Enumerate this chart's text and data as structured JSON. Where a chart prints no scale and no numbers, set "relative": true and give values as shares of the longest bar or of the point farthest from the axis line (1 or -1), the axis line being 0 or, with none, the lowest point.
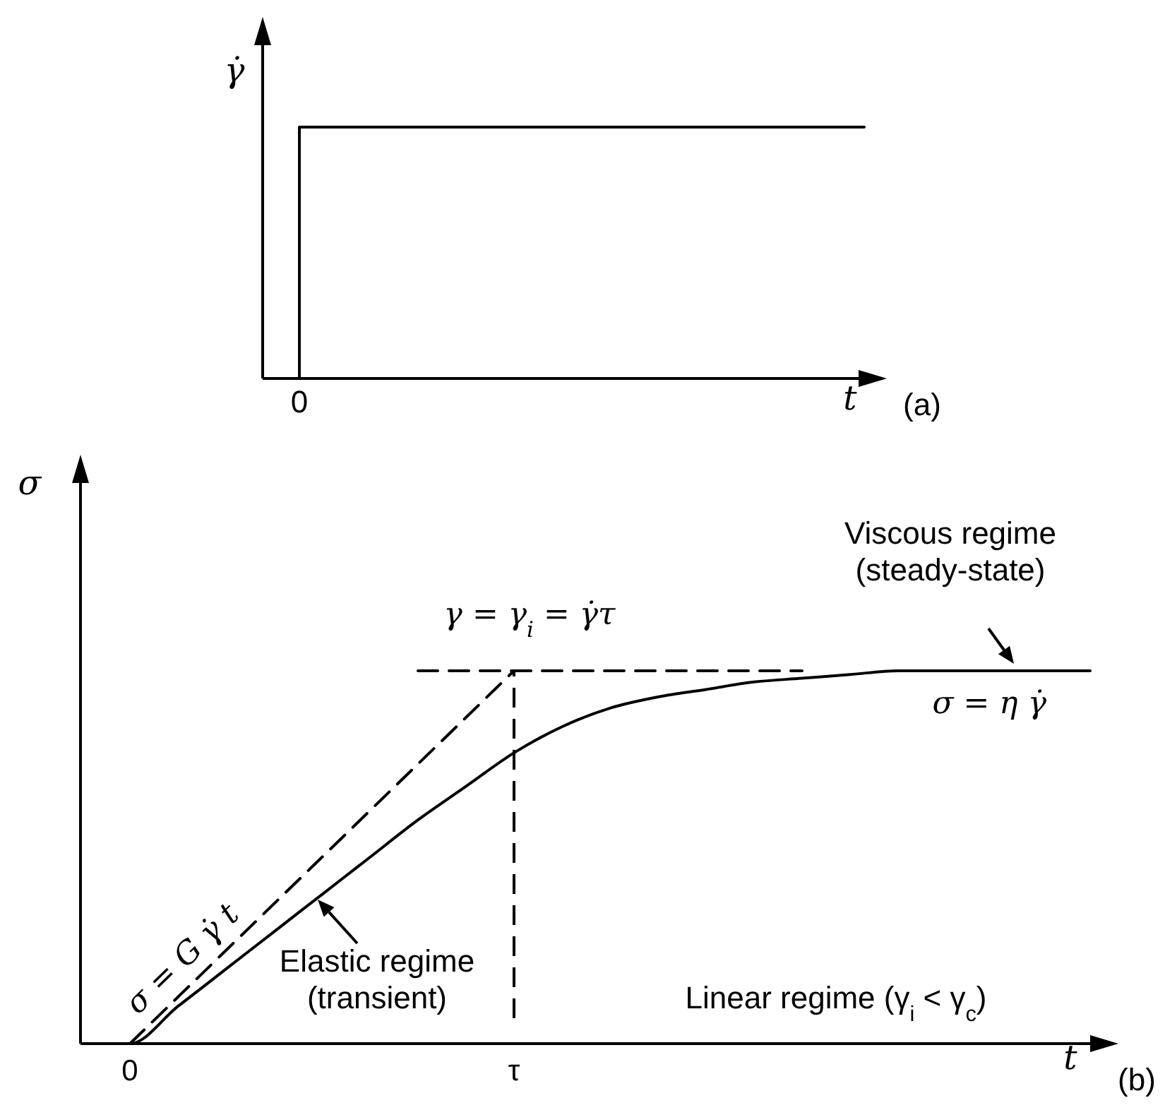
{
  "chart_data": [
    {
      "type": "step",
      "relative": true,
      "xlabel": "t",
      "ylabel": "γ̇",
      "tick_labels": false,
      "categories": [
        null,
        null,
        null,
        null,
        null,
        null,
        null,
        null,
        null,
        null,
        null,
        null,
        null,
        null,
        null,
        null,
        null,
        null
      ],
      "series": [
        {
          "color": "#000000",
          "values": [
            0,
            1,
            1,
            1,
            1,
            1,
            1,
            1,
            1,
            1,
            1,
            1,
            1,
            1,
            1,
            1,
            1,
            1
          ]
        }
      ],
      "annotations": [
        "(a)",
        "0"
      ]
    },
    {
      "type": "line",
      "relative": true,
      "xlabel": "t",
      "ylabel": "σ",
      "tick_labels": "x",
      "categories": [
        null,
        "0",
        null,
        null,
        null,
        null,
        null,
        null,
        null,
        "τ",
        null,
        null,
        null,
        null,
        null,
        null,
        null,
        null,
        null,
        null,
        null,
        null
      ],
      "series": [
        {
          "color": "#000000",
          "values": [
            0,
            0,
            0.1,
            0.2,
            0.3,
            0.4,
            0.5,
            0.6,
            0.69,
            0.78,
            0.85,
            0.9,
            0.93,
            0.95,
            0.97,
            0.98,
            0.99,
            1.0,
            1.0,
            1.0,
            1.0,
            1.0
          ]
        },
        {
          "color": "#000000",
          "line_style": "dashed",
          "values": [
            null,
            0,
            0.125,
            0.25,
            0.375,
            0.5,
            0.625,
            0.75,
            0.875,
            1.0,
            null,
            null,
            null,
            null,
            null,
            null,
            null,
            null,
            null,
            null,
            null,
            null
          ]
        },
        {
          "color": "#000000",
          "line_style": "dashed",
          "values": [
            null,
            null,
            null,
            null,
            null,
            null,
            null,
            1.0,
            1.0,
            1.0,
            1.0,
            1.0,
            1.0,
            1.0,
            1.0,
            1.0,
            null,
            null,
            null,
            null,
            null,
            null
          ]
        }
      ],
      "ref_lines": [
        {
          "axis": "x",
          "value": "τ",
          "color": "#000000",
          "line_style": "dashed"
        }
      ],
      "annotations": [
        "γ = γ$_{i}$ = γ̇τ",
        "Viscous regime\n(steady-state)",
        "σ = η γ̇",
        "σ = G γ̇ t",
        "Elastic regime\n(transient)",
        "Linear regime (γ$_{i}$ < γ$_{c}$)",
        "(b)"
      ]
    }
  ]
}
